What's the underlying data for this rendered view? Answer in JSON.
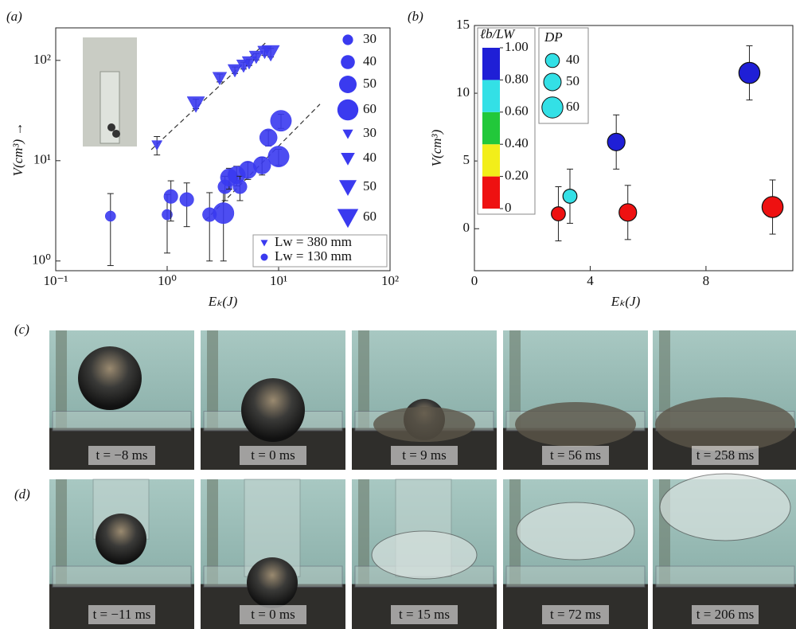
{
  "chart_data": [
    {
      "type": "scatter",
      "panel_label": "(a)",
      "log_x": true,
      "log_y": true,
      "xlim": [
        0.1,
        100
      ],
      "ylim": [
        0.8,
        211
      ],
      "xticks": [
        {
          "value": 0.1,
          "label": "10⁻¹"
        },
        {
          "value": 1,
          "label": "10⁰"
        },
        {
          "value": 10,
          "label": "10¹"
        },
        {
          "value": 100,
          "label": "10²"
        }
      ],
      "yticks": [
        {
          "value": 1,
          "label": "10⁰"
        },
        {
          "value": 10,
          "label": "10¹"
        },
        {
          "value": 100,
          "label": "10²"
        }
      ],
      "xlabel": "Eₖ(J)",
      "ylabel": "V(cm³) →",
      "series": [
        {
          "name": "Lw = 380 mm",
          "marker": "triangle",
          "color": "#3a3aef",
          "x": [
            0.81,
            1.81,
            2.96,
            4.05,
            4.85,
            5.44,
            6.3,
            7.5,
            8.5
          ],
          "values": [
            14.4,
            37,
            67,
            80,
            89,
            96,
            109,
            122,
            120
          ],
          "sizes": [
            30,
            50,
            40,
            40,
            40,
            40,
            40,
            40,
            50
          ],
          "errors": [
            3,
            4,
            6,
            6,
            7,
            7,
            8,
            10,
            12
          ]
        },
        {
          "name": "Lw = 130 mm",
          "marker": "circle",
          "color": "#3a3aef",
          "x": [
            0.31,
            1.0,
            1.08,
            1.5,
            2.4,
            3.2,
            3.3,
            3.6,
            4.2,
            4.5,
            5.3,
            7.1,
            8.1,
            10,
            10.5
          ],
          "values": [
            2.8,
            2.9,
            4.4,
            4.1,
            2.9,
            3.0,
            5.5,
            6.8,
            7.2,
            5.5,
            8.1,
            9,
            17,
            11,
            25
          ],
          "sizes": [
            30,
            30,
            40,
            40,
            40,
            60,
            40,
            50,
            50,
            40,
            50,
            50,
            50,
            60,
            60
          ],
          "errors": [
            1.9,
            1.7,
            1.9,
            1.9,
            1.9,
            2.0,
            1.5,
            1.6,
            1.6,
            1.5,
            1.6,
            1.8,
            3,
            2,
            4
          ]
        }
      ],
      "size_legend": [
        {
          "marker": "circle",
          "sizes": [
            30,
            40,
            50,
            60
          ]
        },
        {
          "marker": "triangle",
          "sizes": [
            30,
            40,
            50,
            60
          ]
        }
      ],
      "fit_lines": [
        {
          "x": [
            0.72,
            7.9
          ],
          "values": [
            12.9,
            155
          ]
        },
        {
          "x": [
            2.2,
            23.5
          ],
          "values": [
            2.54,
            36.6
          ]
        }
      ]
    },
    {
      "type": "scatter",
      "panel_label": "(b)",
      "log_x": false,
      "log_y": false,
      "xlim": [
        0,
        11
      ],
      "ylim": [
        -3.1,
        15
      ],
      "xticks": [
        0,
        4,
        8
      ],
      "yticks": [
        0,
        5,
        10,
        15
      ],
      "xlabel": "Eₖ(J)",
      "ylabel": "V(cm³)",
      "series": [
        {
          "marker": "circle",
          "x": [
            2.9,
            3.3,
            4.9,
            5.3,
            9.5,
            10.3
          ],
          "values": [
            1.1,
            2.4,
            6.4,
            1.2,
            11.5,
            1.6
          ],
          "sizes": [
            40,
            40,
            50,
            50,
            60,
            60
          ],
          "errors": [
            2,
            2,
            2,
            2,
            2,
            2
          ],
          "colors": [
            "#ee1111",
            "#33e0e6",
            "#1f1fd6",
            "#ee1111",
            "#1f1fd6",
            "#ee1111"
          ]
        }
      ],
      "colorbar": {
        "title": "ℓb/LW",
        "ticks": [
          {
            "value": 0,
            "label": "0"
          },
          {
            "value": 0.2,
            "label": "0.20"
          },
          {
            "value": 0.4,
            "label": "0.40"
          },
          {
            "value": 0.6,
            "label": "0.60"
          },
          {
            "value": 0.8,
            "label": "0.80"
          },
          {
            "value": 1,
            "label": "1.00"
          }
        ],
        "colors": [
          "#ee1111",
          "#f2ee1a",
          "#22c83a",
          "#33e0e6",
          "#1f1fd6"
        ]
      },
      "size_legend": [
        {
          "title": "DP",
          "marker": "circle",
          "color": "#33e0e6",
          "sizes": [
            40,
            50,
            60
          ]
        }
      ]
    }
  ],
  "photo_rows": [
    {
      "label": "(c)",
      "frames": [
        "t = −8 ms",
        "t = 0 ms",
        "t = 9 ms",
        "t = 56 ms",
        "t = 258 ms"
      ]
    },
    {
      "label": "(d)",
      "frames": [
        "t = −11 ms",
        "t = 0 ms",
        "t = 15 ms",
        "t = 72 ms",
        "t = 206 ms"
      ]
    }
  ]
}
